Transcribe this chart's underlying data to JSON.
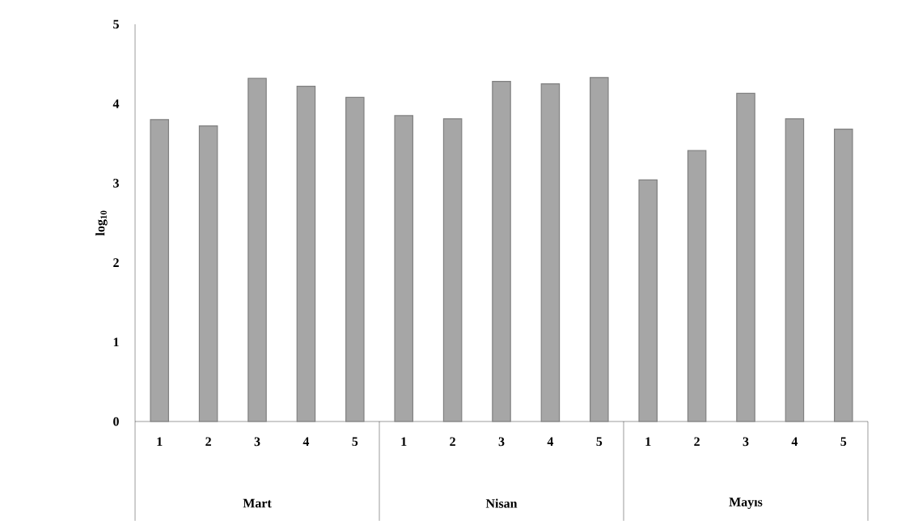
{
  "chart_data": {
    "type": "bar",
    "ylabel": "log$_{10}$",
    "categories": [
      "1",
      "2",
      "3",
      "4",
      "5",
      "1",
      "2",
      "3",
      "4",
      "5",
      "1",
      "2",
      "3",
      "4",
      "5"
    ],
    "values": [
      3.8,
      3.72,
      4.32,
      4.22,
      4.08,
      3.85,
      3.81,
      4.28,
      4.25,
      4.33,
      3.04,
      3.41,
      4.13,
      3.81,
      3.68
    ],
    "color": "#a6a6a6",
    "ylim": [
      0,
      5
    ],
    "yticks": [
      0,
      1,
      2,
      3,
      4,
      5
    ],
    "annotations": [
      "Mart",
      "Nisan",
      "Mayıs"
    ]
  }
}
